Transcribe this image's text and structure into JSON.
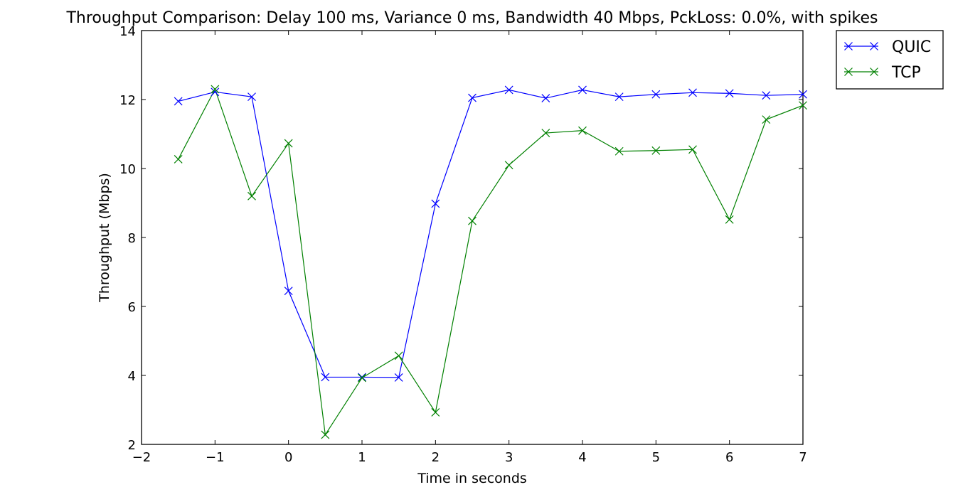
{
  "chart_data": {
    "type": "line",
    "title": "Throughput Comparison: Delay 100 ms, Variance 0 ms, Bandwidth 40 Mbps, PckLoss: 0.0%, with spikes",
    "xlabel": "Time in seconds",
    "ylabel": "Throughput (Mbps)",
    "xlim": [
      -2,
      7
    ],
    "ylim": [
      2,
      14
    ],
    "x_ticks": [
      -2,
      -1,
      0,
      1,
      2,
      3,
      4,
      5,
      6,
      7
    ],
    "x_tick_labels": [
      "−2",
      "−1",
      "0",
      "1",
      "2",
      "3",
      "4",
      "5",
      "6",
      "7"
    ],
    "y_ticks": [
      2,
      4,
      6,
      8,
      10,
      12,
      14
    ],
    "y_tick_labels": [
      "2",
      "4",
      "6",
      "8",
      "10",
      "12",
      "14"
    ],
    "grid": false,
    "legend_position": "outside-top-right",
    "marker": "x",
    "x": [
      -1.5,
      -1.0,
      -0.5,
      0.0,
      0.5,
      1.0,
      1.5,
      2.0,
      2.5,
      3.0,
      3.5,
      4.0,
      4.5,
      5.0,
      5.5,
      6.0,
      6.5,
      7.0
    ],
    "series": [
      {
        "name": "QUIC",
        "color": "#0000ff",
        "values": [
          11.95,
          12.22,
          12.08,
          6.45,
          3.95,
          3.95,
          3.94,
          8.98,
          12.05,
          12.28,
          12.04,
          12.28,
          12.08,
          12.15,
          12.2,
          12.18,
          12.12,
          12.15
        ]
      },
      {
        "name": "TCP",
        "color": "#008000",
        "values": [
          10.27,
          12.3,
          9.2,
          10.73,
          2.28,
          3.93,
          4.57,
          2.93,
          8.48,
          10.1,
          11.03,
          11.1,
          10.5,
          10.52,
          10.55,
          8.52,
          11.42,
          11.83
        ]
      }
    ]
  }
}
